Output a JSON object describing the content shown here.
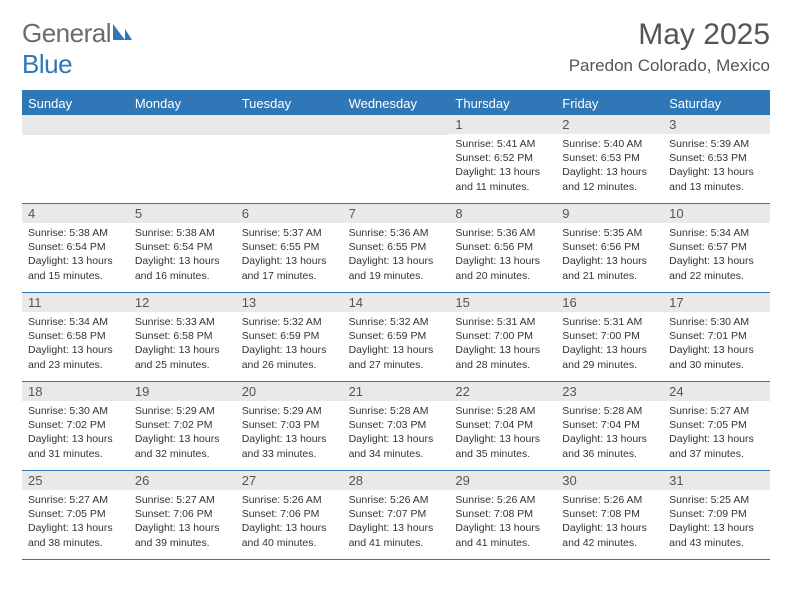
{
  "brand": {
    "part1": "General",
    "part2": "Blue"
  },
  "title": "May 2025",
  "location": "Paredon Colorado, Mexico",
  "colors": {
    "accent": "#2f77b7",
    "header_text": "#ffffff",
    "daynum_bg": "#e9e9e9",
    "text": "#333333"
  },
  "day_labels": [
    "Sunday",
    "Monday",
    "Tuesday",
    "Wednesday",
    "Thursday",
    "Friday",
    "Saturday"
  ],
  "weeks": [
    [
      {
        "n": "",
        "sr": "",
        "ss": "",
        "dl": ""
      },
      {
        "n": "",
        "sr": "",
        "ss": "",
        "dl": ""
      },
      {
        "n": "",
        "sr": "",
        "ss": "",
        "dl": ""
      },
      {
        "n": "",
        "sr": "",
        "ss": "",
        "dl": ""
      },
      {
        "n": "1",
        "sr": "Sunrise: 5:41 AM",
        "ss": "Sunset: 6:52 PM",
        "dl": "Daylight: 13 hours and 11 minutes."
      },
      {
        "n": "2",
        "sr": "Sunrise: 5:40 AM",
        "ss": "Sunset: 6:53 PM",
        "dl": "Daylight: 13 hours and 12 minutes."
      },
      {
        "n": "3",
        "sr": "Sunrise: 5:39 AM",
        "ss": "Sunset: 6:53 PM",
        "dl": "Daylight: 13 hours and 13 minutes."
      }
    ],
    [
      {
        "n": "4",
        "sr": "Sunrise: 5:38 AM",
        "ss": "Sunset: 6:54 PM",
        "dl": "Daylight: 13 hours and 15 minutes."
      },
      {
        "n": "5",
        "sr": "Sunrise: 5:38 AM",
        "ss": "Sunset: 6:54 PM",
        "dl": "Daylight: 13 hours and 16 minutes."
      },
      {
        "n": "6",
        "sr": "Sunrise: 5:37 AM",
        "ss": "Sunset: 6:55 PM",
        "dl": "Daylight: 13 hours and 17 minutes."
      },
      {
        "n": "7",
        "sr": "Sunrise: 5:36 AM",
        "ss": "Sunset: 6:55 PM",
        "dl": "Daylight: 13 hours and 19 minutes."
      },
      {
        "n": "8",
        "sr": "Sunrise: 5:36 AM",
        "ss": "Sunset: 6:56 PM",
        "dl": "Daylight: 13 hours and 20 minutes."
      },
      {
        "n": "9",
        "sr": "Sunrise: 5:35 AM",
        "ss": "Sunset: 6:56 PM",
        "dl": "Daylight: 13 hours and 21 minutes."
      },
      {
        "n": "10",
        "sr": "Sunrise: 5:34 AM",
        "ss": "Sunset: 6:57 PM",
        "dl": "Daylight: 13 hours and 22 minutes."
      }
    ],
    [
      {
        "n": "11",
        "sr": "Sunrise: 5:34 AM",
        "ss": "Sunset: 6:58 PM",
        "dl": "Daylight: 13 hours and 23 minutes."
      },
      {
        "n": "12",
        "sr": "Sunrise: 5:33 AM",
        "ss": "Sunset: 6:58 PM",
        "dl": "Daylight: 13 hours and 25 minutes."
      },
      {
        "n": "13",
        "sr": "Sunrise: 5:32 AM",
        "ss": "Sunset: 6:59 PM",
        "dl": "Daylight: 13 hours and 26 minutes."
      },
      {
        "n": "14",
        "sr": "Sunrise: 5:32 AM",
        "ss": "Sunset: 6:59 PM",
        "dl": "Daylight: 13 hours and 27 minutes."
      },
      {
        "n": "15",
        "sr": "Sunrise: 5:31 AM",
        "ss": "Sunset: 7:00 PM",
        "dl": "Daylight: 13 hours and 28 minutes."
      },
      {
        "n": "16",
        "sr": "Sunrise: 5:31 AM",
        "ss": "Sunset: 7:00 PM",
        "dl": "Daylight: 13 hours and 29 minutes."
      },
      {
        "n": "17",
        "sr": "Sunrise: 5:30 AM",
        "ss": "Sunset: 7:01 PM",
        "dl": "Daylight: 13 hours and 30 minutes."
      }
    ],
    [
      {
        "n": "18",
        "sr": "Sunrise: 5:30 AM",
        "ss": "Sunset: 7:02 PM",
        "dl": "Daylight: 13 hours and 31 minutes."
      },
      {
        "n": "19",
        "sr": "Sunrise: 5:29 AM",
        "ss": "Sunset: 7:02 PM",
        "dl": "Daylight: 13 hours and 32 minutes."
      },
      {
        "n": "20",
        "sr": "Sunrise: 5:29 AM",
        "ss": "Sunset: 7:03 PM",
        "dl": "Daylight: 13 hours and 33 minutes."
      },
      {
        "n": "21",
        "sr": "Sunrise: 5:28 AM",
        "ss": "Sunset: 7:03 PM",
        "dl": "Daylight: 13 hours and 34 minutes."
      },
      {
        "n": "22",
        "sr": "Sunrise: 5:28 AM",
        "ss": "Sunset: 7:04 PM",
        "dl": "Daylight: 13 hours and 35 minutes."
      },
      {
        "n": "23",
        "sr": "Sunrise: 5:28 AM",
        "ss": "Sunset: 7:04 PM",
        "dl": "Daylight: 13 hours and 36 minutes."
      },
      {
        "n": "24",
        "sr": "Sunrise: 5:27 AM",
        "ss": "Sunset: 7:05 PM",
        "dl": "Daylight: 13 hours and 37 minutes."
      }
    ],
    [
      {
        "n": "25",
        "sr": "Sunrise: 5:27 AM",
        "ss": "Sunset: 7:05 PM",
        "dl": "Daylight: 13 hours and 38 minutes."
      },
      {
        "n": "26",
        "sr": "Sunrise: 5:27 AM",
        "ss": "Sunset: 7:06 PM",
        "dl": "Daylight: 13 hours and 39 minutes."
      },
      {
        "n": "27",
        "sr": "Sunrise: 5:26 AM",
        "ss": "Sunset: 7:06 PM",
        "dl": "Daylight: 13 hours and 40 minutes."
      },
      {
        "n": "28",
        "sr": "Sunrise: 5:26 AM",
        "ss": "Sunset: 7:07 PM",
        "dl": "Daylight: 13 hours and 41 minutes."
      },
      {
        "n": "29",
        "sr": "Sunrise: 5:26 AM",
        "ss": "Sunset: 7:08 PM",
        "dl": "Daylight: 13 hours and 41 minutes."
      },
      {
        "n": "30",
        "sr": "Sunrise: 5:26 AM",
        "ss": "Sunset: 7:08 PM",
        "dl": "Daylight: 13 hours and 42 minutes."
      },
      {
        "n": "31",
        "sr": "Sunrise: 5:25 AM",
        "ss": "Sunset: 7:09 PM",
        "dl": "Daylight: 13 hours and 43 minutes."
      }
    ]
  ]
}
